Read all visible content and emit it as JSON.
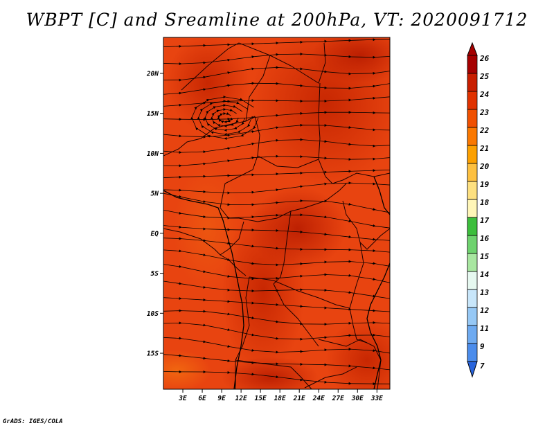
{
  "title": "WBPT [C] and Sreamline at 200hPa, VT: 2020091712",
  "credit": "GrADS: IGES/COLA",
  "map": {
    "lat_labels": [
      {
        "label": "20N",
        "lat": 20
      },
      {
        "label": "15N",
        "lat": 15
      },
      {
        "label": "10N",
        "lat": 10
      },
      {
        "label": "5N",
        "lat": 5
      },
      {
        "label": "EQ",
        "lat": 0
      },
      {
        "label": "5S",
        "lat": -5
      },
      {
        "label": "10S",
        "lat": -10
      },
      {
        "label": "15S",
        "lat": -15
      }
    ],
    "lon_labels": [
      {
        "label": "3E",
        "lon": 3
      },
      {
        "label": "6E",
        "lon": 6
      },
      {
        "label": "9E",
        "lon": 9
      },
      {
        "label": "12E",
        "lon": 12
      },
      {
        "label": "15E",
        "lon": 15
      },
      {
        "label": "18E",
        "lon": 18
      },
      {
        "label": "21E",
        "lon": 21
      },
      {
        "label": "24E",
        "lon": 24
      },
      {
        "label": "27E",
        "lon": 27
      },
      {
        "label": "30E",
        "lon": 30
      },
      {
        "label": "33E",
        "lon": 33
      }
    ],
    "lon_range": [
      0,
      35
    ],
    "lat_range": [
      -19.5,
      24.5
    ]
  },
  "colorbar": {
    "levels": [
      "26",
      "25",
      "24",
      "23",
      "22",
      "21",
      "20",
      "19",
      "18",
      "17",
      "16",
      "15",
      "14",
      "13",
      "12",
      "11",
      "9",
      "7"
    ],
    "colors": [
      "#a50000",
      "#c81e00",
      "#e03200",
      "#f05000",
      "#fa7800",
      "#fca000",
      "#fdc040",
      "#fde080",
      "#fff6b8",
      "#3cbe3c",
      "#6ed26e",
      "#a8e6a0",
      "#e6f8f0",
      "#c8e6fa",
      "#96c8f5",
      "#6eaaf0",
      "#4b8ceb",
      "#2864dc"
    ]
  }
}
